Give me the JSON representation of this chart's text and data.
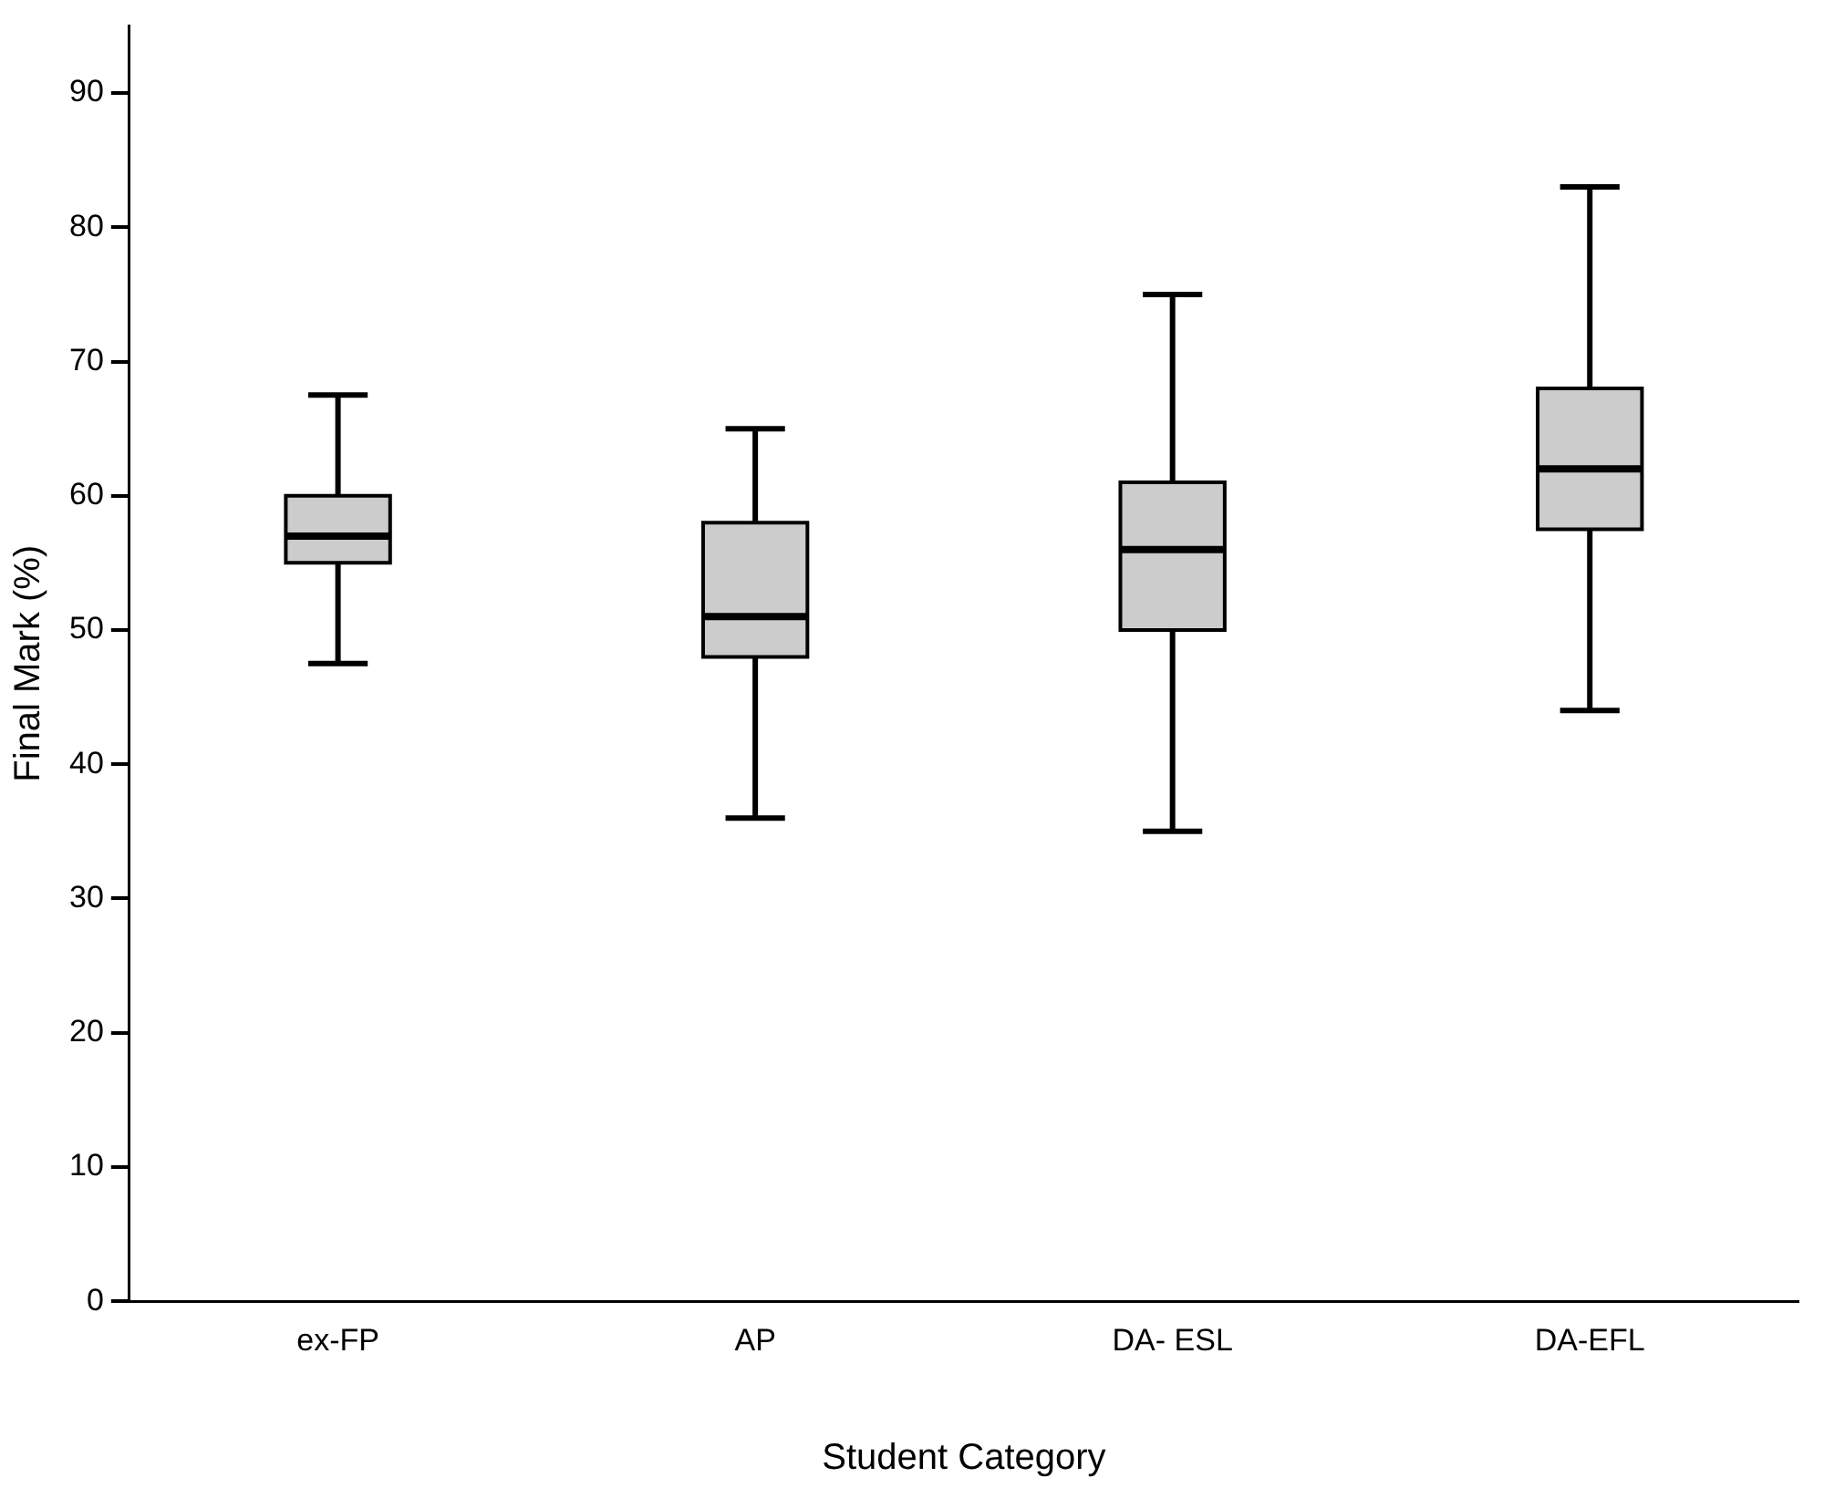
{
  "chart_data": {
    "type": "box",
    "xlabel": "Student Category",
    "ylabel": "Final Mark (%)",
    "categories": [
      "ex-FP",
      "AP",
      "DA- ESL",
      "DA-EFL"
    ],
    "color": "#cccccc",
    "ylim": [
      0,
      95
    ],
    "yticks": [
      0,
      10,
      20,
      30,
      40,
      50,
      60,
      70,
      80,
      90
    ],
    "grid": false,
    "legend": false,
    "boxes": [
      {
        "low": 47.5,
        "q1": 55,
        "median": 57,
        "q3": 60,
        "high": 67.5
      },
      {
        "low": 36,
        "q1": 48,
        "median": 51,
        "q3": 58,
        "high": 65
      },
      {
        "low": 35,
        "q1": 50,
        "median": 56,
        "q3": 61,
        "high": 75
      },
      {
        "low": 44,
        "q1": 57.5,
        "median": 62,
        "q3": 68,
        "high": 83
      }
    ]
  }
}
